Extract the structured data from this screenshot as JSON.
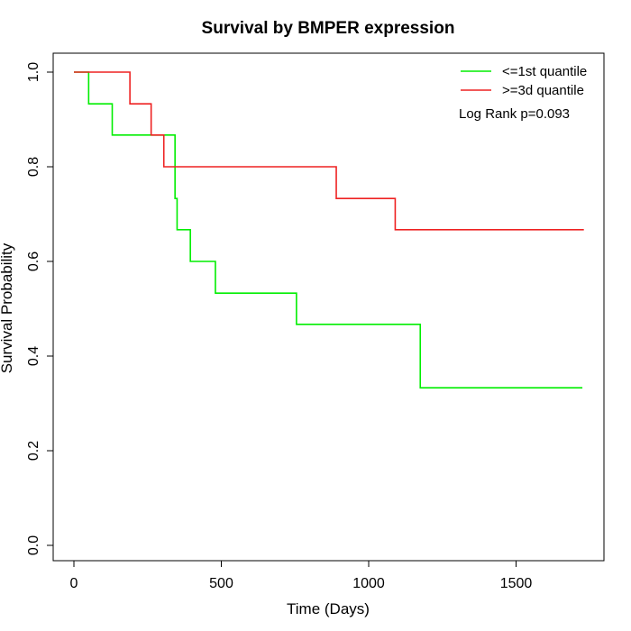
{
  "chart_data": {
    "type": "line",
    "subtype": "step",
    "title": "Survival by BMPER expression",
    "xlabel": "Time (Days)",
    "ylabel": "Survival Probability",
    "xlim": [
      0,
      1750
    ],
    "ylim": [
      0,
      1
    ],
    "x_ticks": [
      0,
      500,
      1000,
      1500
    ],
    "y_ticks": [
      0.0,
      0.2,
      0.4,
      0.6,
      0.8,
      1.0
    ],
    "x_tick_labels": [
      "0",
      "500",
      "1000",
      "1500"
    ],
    "y_tick_labels": [
      "0.0",
      "0.2",
      "0.4",
      "0.6",
      "0.8",
      "1.0"
    ],
    "grid": false,
    "legend_position": "top-right",
    "annotation": "Log Rank p=0.093",
    "series": [
      {
        "name": "<=1st quantile",
        "color": "#00ee00",
        "x": [
          0,
          50,
          130,
          330,
          343,
          350,
          395,
          480,
          755,
          1175,
          1725
        ],
        "y": [
          1.0,
          0.933,
          0.867,
          0.867,
          0.733,
          0.667,
          0.6,
          0.533,
          0.467,
          0.333,
          0.333
        ]
      },
      {
        "name": ">=3d quantile",
        "color": "#ee2222",
        "x": [
          0,
          190,
          262,
          305,
          890,
          1090,
          1730
        ],
        "y": [
          1.0,
          0.933,
          0.867,
          0.8,
          0.733,
          0.667,
          0.667
        ]
      }
    ]
  }
}
